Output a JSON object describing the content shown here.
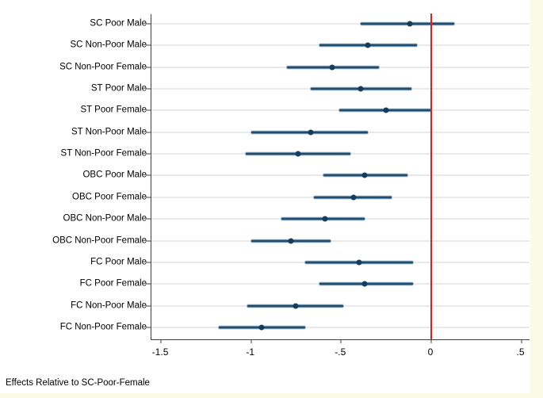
{
  "chart_data": {
    "type": "scatter",
    "subtype": "coefficient-forest-plot",
    "title": "",
    "xlabel": "",
    "ylabel": "",
    "footnote": "Effects Relative to SC-Poor-Female",
    "legend": null,
    "grid": "horizontal",
    "xlim": [
      -1.553,
      0.546
    ],
    "x_ticks": [
      {
        "label": "-1.5",
        "value": -1.5
      },
      {
        "label": "-1",
        "value": -1.0
      },
      {
        "label": "-.5",
        "value": -0.5
      },
      {
        "label": "0",
        "value": 0.0
      },
      {
        "label": ".5",
        "value": 0.5
      }
    ],
    "reference_line_x": 0,
    "categories": [
      "SC Poor Male",
      "SC Non-Poor Male",
      "SC Non-Poor Female",
      "ST Poor Male",
      "ST Poor Female",
      "ST Non-Poor Male",
      "ST Non-Poor Female",
      "OBC Poor Male",
      "OBC Poor Female",
      "OBC Non-Poor Male",
      "OBC Non-Poor Female",
      "FC Poor Male",
      "FC Poor Female",
      "FC Non-Poor Male",
      "FC Non-Poor Female"
    ],
    "points": [
      {
        "label": "SC Poor Male",
        "estimate": -0.12,
        "ci_low": -0.39,
        "ci_high": 0.13
      },
      {
        "label": "SC Non-Poor Male",
        "estimate": -0.35,
        "ci_low": -0.62,
        "ci_high": -0.08
      },
      {
        "label": "SC Non-Poor Female",
        "estimate": -0.55,
        "ci_low": -0.8,
        "ci_high": -0.29
      },
      {
        "label": "ST Poor Male",
        "estimate": -0.39,
        "ci_low": -0.67,
        "ci_high": -0.11
      },
      {
        "label": "ST Poor Female",
        "estimate": -0.25,
        "ci_low": -0.51,
        "ci_high": 0.0
      },
      {
        "label": "ST Non-Poor Male",
        "estimate": -0.67,
        "ci_low": -1.0,
        "ci_high": -0.35
      },
      {
        "label": "ST Non-Poor Female",
        "estimate": -0.74,
        "ci_low": -1.03,
        "ci_high": -0.45
      },
      {
        "label": "OBC Poor Male",
        "estimate": -0.37,
        "ci_low": -0.6,
        "ci_high": -0.13
      },
      {
        "label": "OBC Poor Female",
        "estimate": -0.43,
        "ci_low": -0.65,
        "ci_high": -0.22
      },
      {
        "label": "OBC Non-Poor Male",
        "estimate": -0.59,
        "ci_low": -0.83,
        "ci_high": -0.37
      },
      {
        "label": "OBC Non-Poor Female",
        "estimate": -0.78,
        "ci_low": -1.0,
        "ci_high": -0.56
      },
      {
        "label": "FC Poor Male",
        "estimate": -0.4,
        "ci_low": -0.7,
        "ci_high": -0.1
      },
      {
        "label": "FC Poor Female",
        "estimate": -0.37,
        "ci_low": -0.62,
        "ci_high": -0.1
      },
      {
        "label": "FC Non-Poor Male",
        "estimate": -0.75,
        "ci_low": -1.02,
        "ci_high": -0.49
      },
      {
        "label": "FC Non-Poor Female",
        "estimate": -0.94,
        "ci_low": -1.18,
        "ci_high": -0.7
      }
    ],
    "colors": {
      "ci_bar": "#1d4d70",
      "marker": "#143c5c",
      "reference_line": "#f51616",
      "gridline": "#e9e9e9",
      "axis": "#3f3f3f",
      "plot_background": "#ffffff",
      "page_background": "#fbfae6"
    }
  }
}
